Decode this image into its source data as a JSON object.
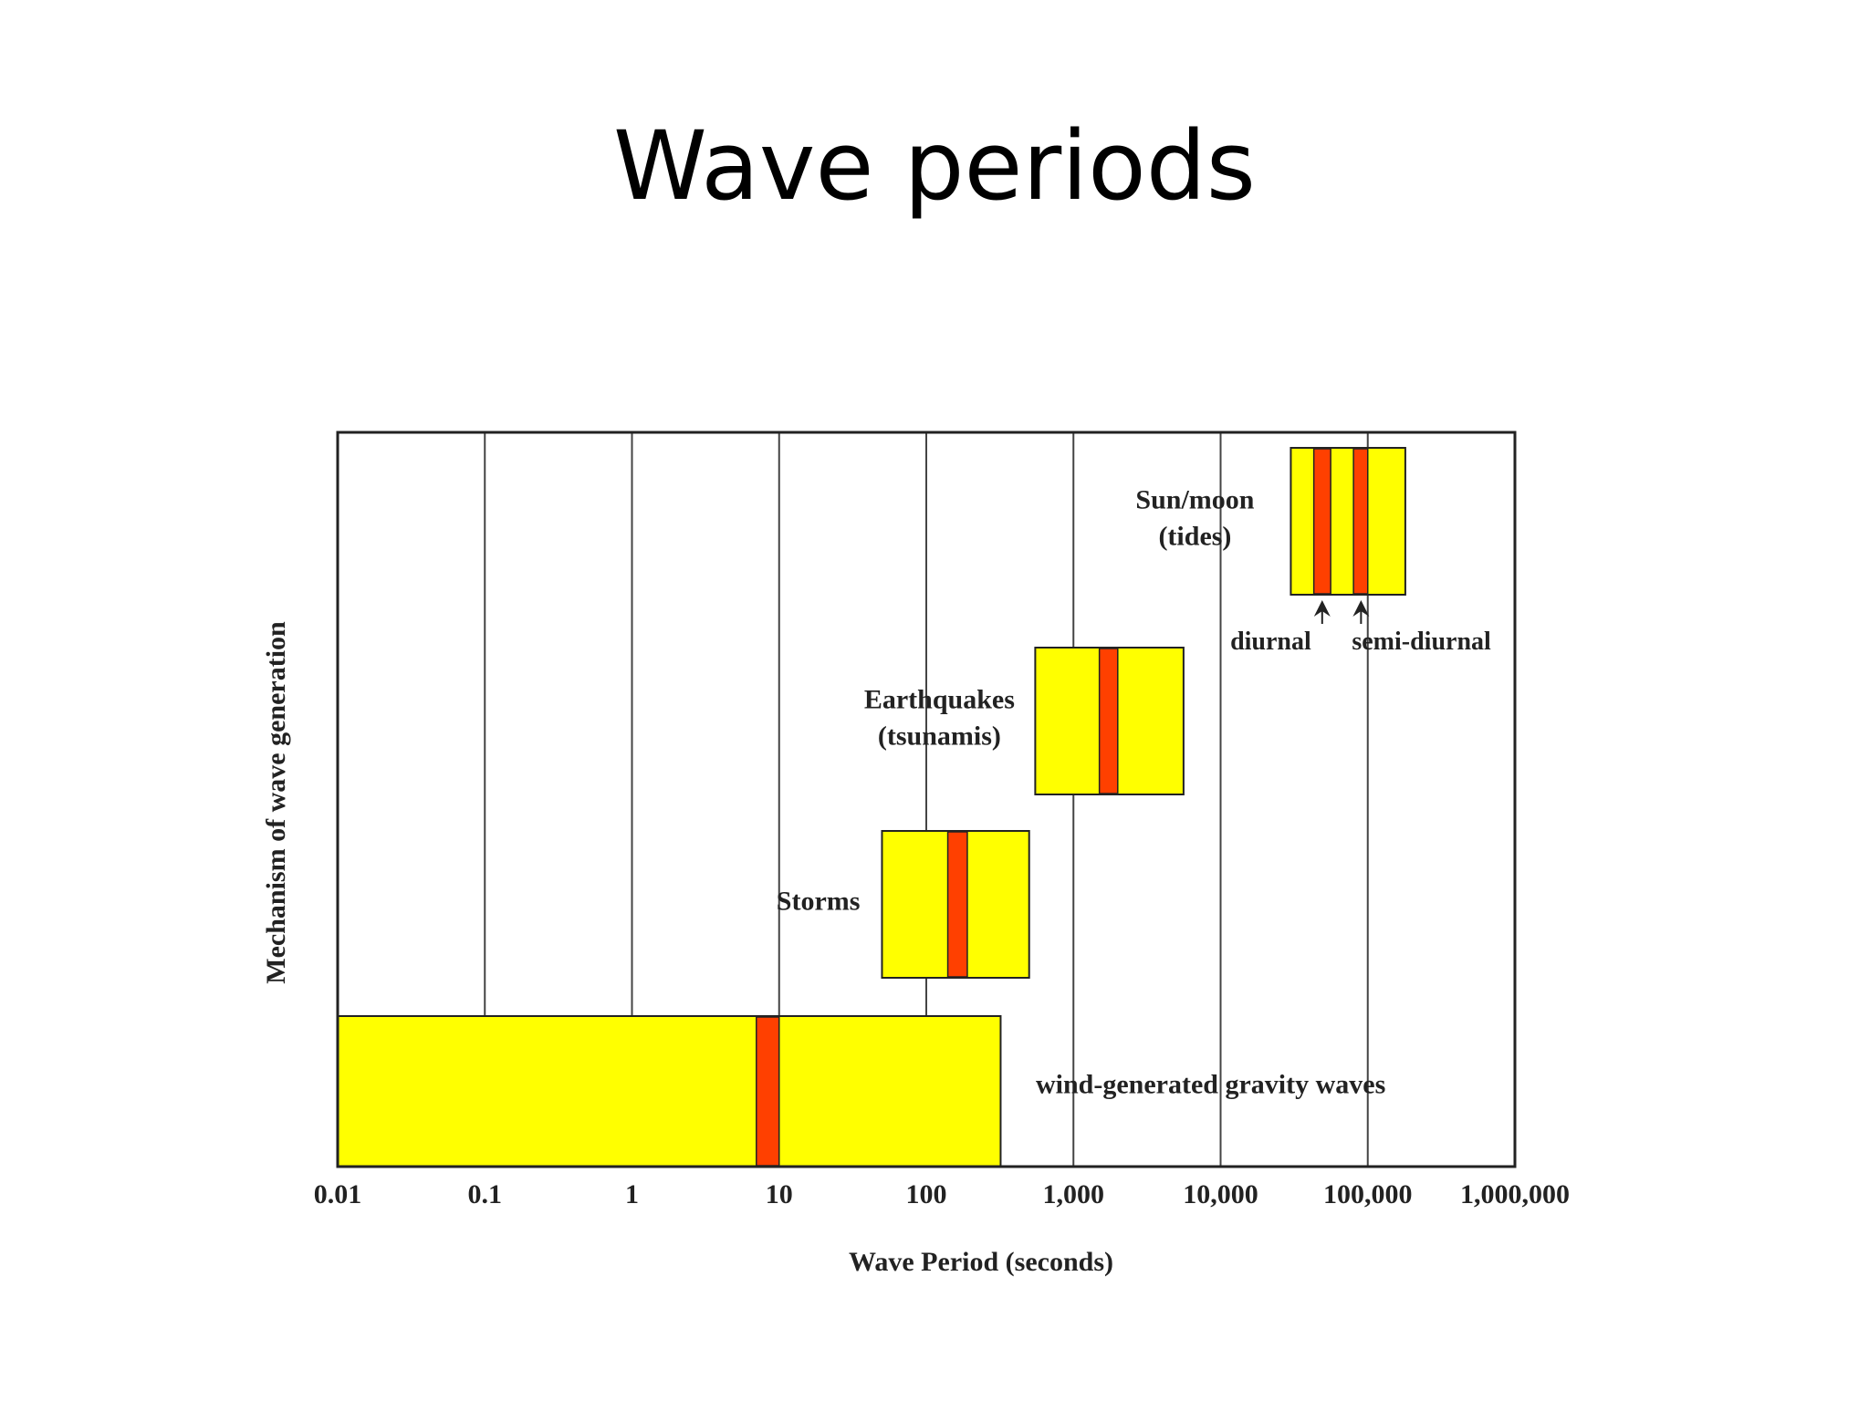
{
  "slide": {
    "title": "Wave periods"
  },
  "chart_data": {
    "type": "range-bar",
    "xscale": "log",
    "xlim": [
      0.01,
      1000000
    ],
    "xlabel": "Wave Period (seconds)",
    "ylabel": "Mechanism of wave generation",
    "xticks": [
      {
        "value": 0.01,
        "label": "0.01"
      },
      {
        "value": 0.1,
        "label": "0.1"
      },
      {
        "value": 1,
        "label": "1"
      },
      {
        "value": 10,
        "label": "10"
      },
      {
        "value": 100,
        "label": "100"
      },
      {
        "value": 1000,
        "label": "1,000"
      },
      {
        "value": 10000,
        "label": "10,000"
      },
      {
        "value": 100000,
        "label": "100,000"
      },
      {
        "value": 1000000,
        "label": "1,000,000"
      }
    ],
    "grid": "vertical",
    "colors": {
      "range": "#ffff00",
      "peak": "#ff4000",
      "outline": "#222222",
      "grid": "#444444"
    },
    "mechanisms": [
      {
        "id": "wind",
        "label_lines": [
          "wind-generated gravity waves"
        ],
        "label_side": "right",
        "range": [
          0.01,
          320
        ],
        "peaks": [
          {
            "from": 7,
            "to": 10
          }
        ]
      },
      {
        "id": "storms",
        "label_lines": [
          "Storms"
        ],
        "label_side": "left",
        "range": [
          50,
          500
        ],
        "peaks": [
          {
            "from": 140,
            "to": 190
          }
        ]
      },
      {
        "id": "earthquakes",
        "label_lines": [
          "Earthquakes",
          "(tsunamis)"
        ],
        "label_side": "left",
        "range": [
          550,
          5600
        ],
        "peaks": [
          {
            "from": 1500,
            "to": 2000
          }
        ]
      },
      {
        "id": "tides",
        "label_lines": [
          "Sun/moon",
          "(tides)"
        ],
        "label_side": "left",
        "range": [
          30000,
          180000
        ],
        "peaks": [
          {
            "from": 43000,
            "to": 56000
          },
          {
            "from": 80000,
            "to": 100000
          }
        ]
      }
    ],
    "annotations": [
      {
        "text": "diurnal",
        "points_to": 49000
      },
      {
        "text": "semi-diurnal",
        "points_to": 90000
      }
    ]
  }
}
